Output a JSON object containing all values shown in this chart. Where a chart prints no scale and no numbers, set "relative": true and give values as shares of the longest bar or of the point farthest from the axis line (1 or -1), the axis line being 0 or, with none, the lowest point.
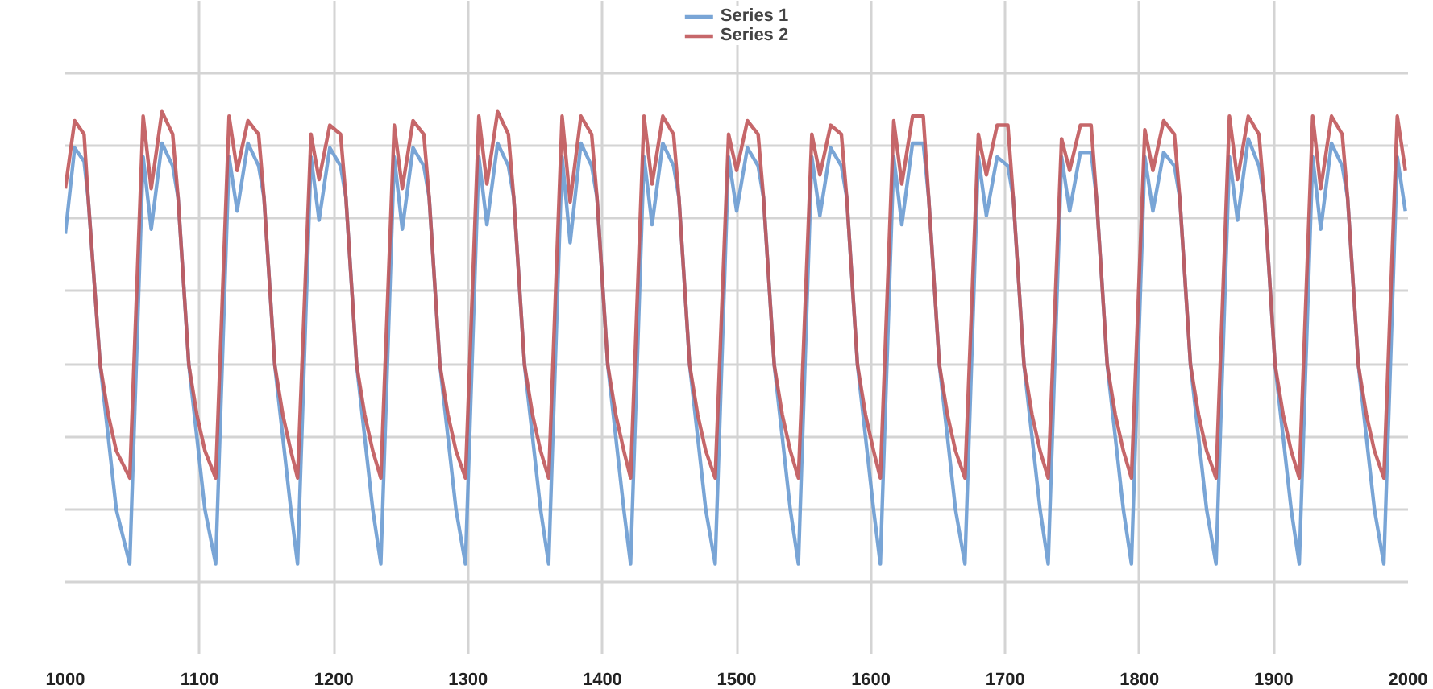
{
  "chart_data": {
    "type": "line",
    "relative": true,
    "grid": true,
    "legend": "top",
    "tick_labels": "x",
    "line_style": "solid",
    "marker": "none",
    "xlim": [
      1000,
      2000
    ],
    "xticks": [
      1000,
      1100,
      1200,
      1300,
      1400,
      1500,
      1600,
      1700,
      1800,
      1900,
      2000
    ],
    "x": [
      1000,
      1007,
      1014,
      1017,
      1026,
      1032,
      1038,
      1048,
      1058,
      1064,
      1072,
      1080,
      1084,
      1092,
      1098,
      1104,
      1112,
      1122,
      1128,
      1136,
      1144,
      1148,
      1156,
      1162,
      1168,
      1173,
      1183,
      1189,
      1197,
      1205,
      1209,
      1217,
      1223,
      1229,
      1235,
      1245,
      1251,
      1259,
      1267,
      1271,
      1279,
      1285,
      1291,
      1298,
      1308,
      1314,
      1322,
      1330,
      1334,
      1342,
      1348,
      1354,
      1360,
      1370,
      1376,
      1384,
      1392,
      1396,
      1404,
      1410,
      1416,
      1421,
      1431,
      1437,
      1445,
      1453,
      1457,
      1465,
      1471,
      1477,
      1484,
      1494,
      1500,
      1508,
      1516,
      1520,
      1528,
      1534,
      1540,
      1546,
      1556,
      1562,
      1570,
      1578,
      1582,
      1590,
      1596,
      1602,
      1607,
      1617,
      1623,
      1631,
      1639,
      1643,
      1651,
      1657,
      1663,
      1670,
      1680,
      1686,
      1694,
      1702,
      1706,
      1714,
      1720,
      1726,
      1732,
      1742,
      1748,
      1756,
      1764,
      1768,
      1776,
      1782,
      1788,
      1794,
      1804,
      1810,
      1818,
      1826,
      1830,
      1838,
      1844,
      1850,
      1857,
      1867,
      1873,
      1881,
      1889,
      1893,
      1901,
      1907,
      1913,
      1919,
      1929,
      1935,
      1943,
      1951,
      1955,
      1963,
      1969,
      1975,
      1982,
      1992,
      1998
    ],
    "series": [
      {
        "name": "Series 1",
        "color": "#6a9bd2",
        "values": [
          0.73,
          0.92,
          0.89,
          0.81,
          0.44,
          0.28,
          0.12,
          0,
          0.9,
          0.74,
          0.93,
          0.88,
          0.81,
          0.44,
          0.28,
          0.12,
          0,
          0.9,
          0.78,
          0.93,
          0.88,
          0.81,
          0.44,
          0.28,
          0.12,
          0,
          0.9,
          0.76,
          0.92,
          0.88,
          0.81,
          0.44,
          0.28,
          0.12,
          0,
          0.9,
          0.74,
          0.92,
          0.88,
          0.81,
          0.44,
          0.28,
          0.12,
          0,
          0.9,
          0.75,
          0.93,
          0.88,
          0.81,
          0.44,
          0.28,
          0.12,
          0,
          0.9,
          0.71,
          0.93,
          0.88,
          0.81,
          0.44,
          0.28,
          0.12,
          0,
          0.9,
          0.75,
          0.93,
          0.88,
          0.81,
          0.44,
          0.28,
          0.12,
          0,
          0.9,
          0.78,
          0.92,
          0.88,
          0.81,
          0.44,
          0.28,
          0.12,
          0,
          0.9,
          0.77,
          0.92,
          0.88,
          0.81,
          0.44,
          0.28,
          0.12,
          0,
          0.9,
          0.75,
          0.93,
          0.93,
          0.81,
          0.44,
          0.28,
          0.12,
          0,
          0.9,
          0.77,
          0.9,
          0.88,
          0.81,
          0.44,
          0.28,
          0.12,
          0,
          0.9,
          0.78,
          0.91,
          0.91,
          0.81,
          0.44,
          0.28,
          0.12,
          0,
          0.9,
          0.78,
          0.91,
          0.88,
          0.81,
          0.44,
          0.28,
          0.12,
          0,
          0.9,
          0.76,
          0.94,
          0.88,
          0.81,
          0.44,
          0.28,
          0.12,
          0,
          0.9,
          0.74,
          0.93,
          0.88,
          0.81,
          0.44,
          0.28,
          0.12,
          0,
          0.9,
          0.78
        ]
      },
      {
        "name": "Series 2",
        "color": "#c0575a",
        "values": [
          0.83,
          0.98,
          0.95,
          0.81,
          0.44,
          0.33,
          0.25,
          0.19,
          0.99,
          0.83,
          1.0,
          0.95,
          0.81,
          0.44,
          0.33,
          0.25,
          0.19,
          0.99,
          0.87,
          0.98,
          0.95,
          0.81,
          0.44,
          0.33,
          0.25,
          0.19,
          0.95,
          0.85,
          0.97,
          0.95,
          0.81,
          0.44,
          0.33,
          0.25,
          0.19,
          0.97,
          0.83,
          0.98,
          0.95,
          0.81,
          0.44,
          0.33,
          0.25,
          0.19,
          0.99,
          0.84,
          1.0,
          0.95,
          0.81,
          0.44,
          0.33,
          0.25,
          0.19,
          0.99,
          0.8,
          0.99,
          0.95,
          0.81,
          0.44,
          0.33,
          0.25,
          0.19,
          0.99,
          0.84,
          0.99,
          0.95,
          0.81,
          0.44,
          0.33,
          0.25,
          0.19,
          0.95,
          0.87,
          0.98,
          0.95,
          0.81,
          0.44,
          0.33,
          0.25,
          0.19,
          0.95,
          0.86,
          0.97,
          0.95,
          0.81,
          0.44,
          0.33,
          0.25,
          0.19,
          0.98,
          0.84,
          0.99,
          0.99,
          0.81,
          0.44,
          0.33,
          0.25,
          0.19,
          0.95,
          0.86,
          0.97,
          0.97,
          0.81,
          0.44,
          0.33,
          0.25,
          0.19,
          0.94,
          0.87,
          0.97,
          0.97,
          0.81,
          0.44,
          0.33,
          0.25,
          0.19,
          0.96,
          0.87,
          0.98,
          0.95,
          0.81,
          0.44,
          0.33,
          0.25,
          0.19,
          0.99,
          0.85,
          0.99,
          0.95,
          0.81,
          0.44,
          0.33,
          0.25,
          0.19,
          0.99,
          0.83,
          0.99,
          0.95,
          0.81,
          0.44,
          0.33,
          0.25,
          0.19,
          0.99,
          0.87
        ]
      }
    ]
  }
}
